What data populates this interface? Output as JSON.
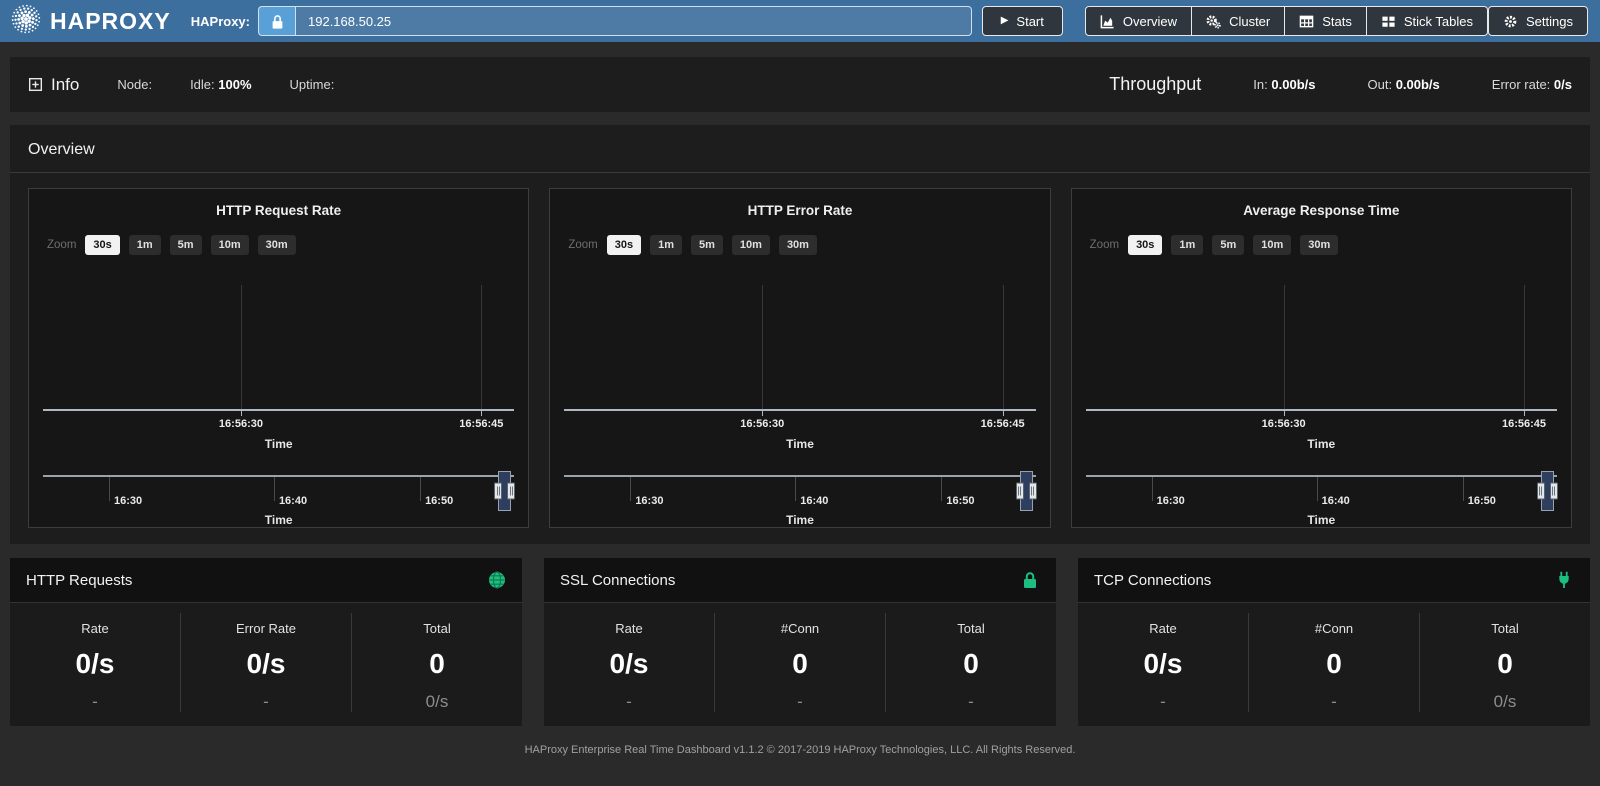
{
  "navbar": {
    "brand": "HAPROXY",
    "haproxy_label": "HAProxy:",
    "address_value": "192.168.50.25",
    "start_button": "Start",
    "nav_buttons": [
      {
        "label": "Overview",
        "icon": "area-chart-icon"
      },
      {
        "label": "Cluster",
        "icon": "cogs-icon"
      },
      {
        "label": "Stats",
        "icon": "table-icon"
      },
      {
        "label": "Stick Tables",
        "icon": "grid-icon"
      }
    ],
    "settings_button": "Settings"
  },
  "info_bar": {
    "info_label": "Info",
    "node_label": "Node:",
    "idle_label": "Idle:",
    "idle_value": "100%",
    "uptime_label": "Uptime:",
    "throughput_label": "Throughput",
    "in_label": "In:",
    "in_value": "0.00b/s",
    "out_label": "Out:",
    "out_value": "0.00b/s",
    "error_rate_label": "Error rate:",
    "error_rate_value": "0/s"
  },
  "overview": {
    "section_title": "Overview",
    "charts": [
      {
        "title": "HTTP Request Rate",
        "type": "line",
        "zoom_label": "Zoom",
        "zoom_options": [
          "30s",
          "1m",
          "5m",
          "10m",
          "30m"
        ],
        "selected_zoom": "30s",
        "series": [],
        "x_axis": {
          "ticks": [
            "16:56:30",
            "16:56:45"
          ],
          "label": "Time"
        },
        "navigator": {
          "ticks": [
            "16:30",
            "16:40",
            "16:50"
          ],
          "label": "Time"
        }
      },
      {
        "title": "HTTP Error Rate",
        "type": "line",
        "zoom_label": "Zoom",
        "zoom_options": [
          "30s",
          "1m",
          "5m",
          "10m",
          "30m"
        ],
        "selected_zoom": "30s",
        "series": [],
        "x_axis": {
          "ticks": [
            "16:56:30",
            "16:56:45"
          ],
          "label": "Time"
        },
        "navigator": {
          "ticks": [
            "16:30",
            "16:40",
            "16:50"
          ],
          "label": "Time"
        }
      },
      {
        "title": "Average Response Time",
        "type": "line",
        "zoom_label": "Zoom",
        "zoom_options": [
          "30s",
          "1m",
          "5m",
          "10m",
          "30m"
        ],
        "selected_zoom": "30s",
        "series": [],
        "x_axis": {
          "ticks": [
            "16:56:30",
            "16:56:45"
          ],
          "label": "Time"
        },
        "navigator": {
          "ticks": [
            "16:30",
            "16:40",
            "16:50"
          ],
          "label": "Time"
        }
      }
    ]
  },
  "cards": [
    {
      "title": "HTTP Requests",
      "icon": "globe-icon",
      "columns": [
        {
          "label": "Rate",
          "value": "0/s",
          "sub_value": "-"
        },
        {
          "label": "Error Rate",
          "value": "0/s",
          "sub_value": "-"
        },
        {
          "label": "Total",
          "value": "0",
          "sub_value": "0/s"
        }
      ]
    },
    {
      "title": "SSL Connections",
      "icon": "lock-icon",
      "columns": [
        {
          "label": "Rate",
          "value": "0/s",
          "sub_value": "-"
        },
        {
          "label": "#Conn",
          "value": "0",
          "sub_value": "-"
        },
        {
          "label": "Total",
          "value": "0",
          "sub_value": "-"
        }
      ]
    },
    {
      "title": "TCP Connections",
      "icon": "plug-icon",
      "columns": [
        {
          "label": "Rate",
          "value": "0/s",
          "sub_value": "-"
        },
        {
          "label": "#Conn",
          "value": "0",
          "sub_value": "-"
        },
        {
          "label": "Total",
          "value": "0",
          "sub_value": "0/s"
        }
      ]
    }
  ],
  "footer": {
    "text": "HAProxy Enterprise Real Time Dashboard v1.1.2 © 2017-2019 HAProxy Technologies, LLC. All Rights Reserved."
  },
  "colors": {
    "navbar_blue": "#3c6e9e",
    "lock_button_blue": "#58a0d6",
    "input_blue": "#4e7ba6",
    "dark_button": "#30363d",
    "accent_green": "#1dbf80",
    "page_bg": "#2a2a2a",
    "panel_bg": "#1d1d1d",
    "chart_panel_bg": "#161616",
    "selected_zoom_bg": "#f2f2f2",
    "navigator_range_blue": "#2d3e5e",
    "axis_line": "#aeb8c4"
  }
}
